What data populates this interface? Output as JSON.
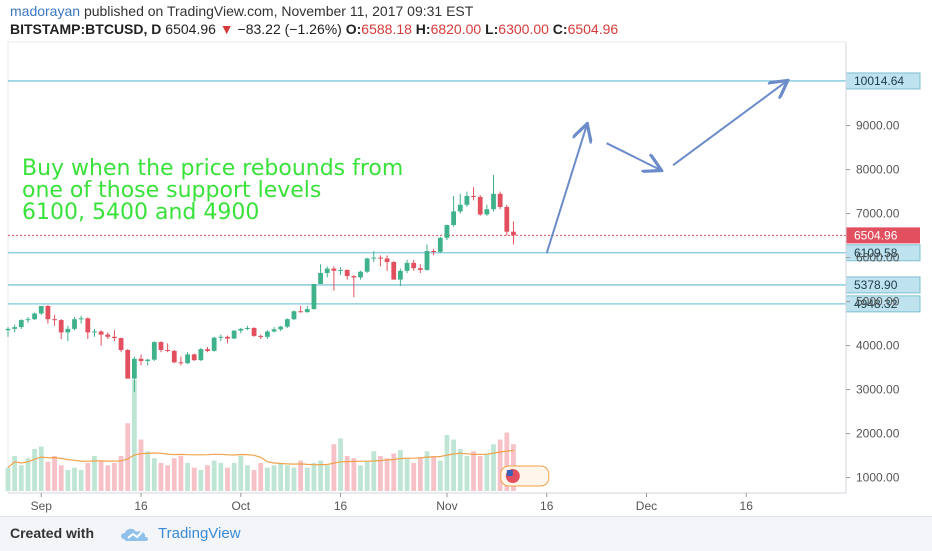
{
  "header": {
    "author": "madorayan",
    "published": "published on TradingView.com, November 11, 2017 09:31 EST",
    "symbol": "BITSTAMP:BTCUSD, D",
    "last": "6504.96",
    "change": "−83.22 (−1.26%)",
    "o_label": "O:",
    "o_val": "6588.18",
    "h_label": "H:",
    "h_val": "6820.00",
    "l_label": "L:",
    "l_val": "6300.00",
    "c_label": "C:",
    "c_val": "6504.96"
  },
  "footer": {
    "created": "Created with",
    "brand": "TradingView"
  },
  "colors": {
    "up": "#3fb28a",
    "down": "#e2505f",
    "level": "#7fc7d9",
    "arrow": "#6b8cc9",
    "annotation": "#39e23a",
    "volume_ma": "#f0a24a"
  },
  "chart_data": {
    "type": "candlestick",
    "title": "",
    "annotation": [
      "Buy when the price rebounds from",
      "one of those support levels",
      "6100, 5400 and 4900"
    ],
    "y_axis": {
      "ticks": [
        1000,
        2000,
        3000,
        4000,
        5000,
        6000,
        7000,
        8000,
        9000
      ],
      "tick_labels": [
        "1000.00",
        "2000.00",
        "3000.00",
        "4000.00",
        "5000.00",
        "6000.00",
        "7000.00",
        "8000.00",
        "9000.00"
      ],
      "range": [
        650,
        10900
      ]
    },
    "x_axis": {
      "tick_labels": [
        "Sep",
        "16",
        "Oct",
        "16",
        "Nov",
        "16",
        "Dec",
        "16"
      ],
      "tick_dates": [
        "2017-09-01",
        "2017-09-16",
        "2017-10-01",
        "2017-10-16",
        "2017-11-01",
        "2017-11-16",
        "2017-12-01",
        "2017-12-16"
      ],
      "range": [
        "2017-08-27",
        "2017-12-31"
      ]
    },
    "levels": [
      {
        "value": 10014.64,
        "label": "10014.64"
      },
      {
        "value": 6109.58,
        "label": "6109.58"
      },
      {
        "value": 5378.9,
        "label": "5378.90"
      },
      {
        "value": 4948.32,
        "label": "4948.32"
      }
    ],
    "last_price": {
      "value": 6504.96,
      "label": "6504.96"
    },
    "projection": [
      {
        "date": "2017-11-16",
        "value": 6100
      },
      {
        "date": "2017-11-22",
        "value": 9000
      },
      {
        "date": "2017-11-25",
        "value": 8600
      },
      {
        "date": "2017-12-03",
        "value": 8000
      },
      {
        "date": "2017-12-05",
        "value": 8100
      },
      {
        "date": "2017-12-22",
        "value": 10000
      }
    ],
    "candles": [
      {
        "d": "2017-08-27",
        "o": 4350,
        "h": 4420,
        "l": 4200,
        "c": 4380
      },
      {
        "d": "2017-08-28",
        "o": 4380,
        "h": 4480,
        "l": 4300,
        "c": 4420
      },
      {
        "d": "2017-08-29",
        "o": 4420,
        "h": 4600,
        "l": 4380,
        "c": 4580
      },
      {
        "d": "2017-08-30",
        "o": 4580,
        "h": 4650,
        "l": 4520,
        "c": 4600
      },
      {
        "d": "2017-08-31",
        "o": 4600,
        "h": 4750,
        "l": 4580,
        "c": 4730
      },
      {
        "d": "2017-09-01",
        "o": 4730,
        "h": 4900,
        "l": 4700,
        "c": 4900
      },
      {
        "d": "2017-09-02",
        "o": 4900,
        "h": 4920,
        "l": 4500,
        "c": 4600
      },
      {
        "d": "2017-09-03",
        "o": 4600,
        "h": 4700,
        "l": 4450,
        "c": 4580
      },
      {
        "d": "2017-09-04",
        "o": 4580,
        "h": 4600,
        "l": 4150,
        "c": 4300
      },
      {
        "d": "2017-09-05",
        "o": 4300,
        "h": 4450,
        "l": 4100,
        "c": 4380
      },
      {
        "d": "2017-09-06",
        "o": 4380,
        "h": 4650,
        "l": 4350,
        "c": 4600
      },
      {
        "d": "2017-09-07",
        "o": 4600,
        "h": 4680,
        "l": 4500,
        "c": 4620
      },
      {
        "d": "2017-09-08",
        "o": 4620,
        "h": 4640,
        "l": 4150,
        "c": 4300
      },
      {
        "d": "2017-09-09",
        "o": 4300,
        "h": 4380,
        "l": 4200,
        "c": 4320
      },
      {
        "d": "2017-09-10",
        "o": 4320,
        "h": 4350,
        "l": 4000,
        "c": 4250
      },
      {
        "d": "2017-09-11",
        "o": 4250,
        "h": 4300,
        "l": 4150,
        "c": 4200
      },
      {
        "d": "2017-09-12",
        "o": 4200,
        "h": 4350,
        "l": 4100,
        "c": 4170
      },
      {
        "d": "2017-09-13",
        "o": 4170,
        "h": 4180,
        "l": 3850,
        "c": 3900
      },
      {
        "d": "2017-09-14",
        "o": 3900,
        "h": 3920,
        "l": 3250,
        "c": 3250
      },
      {
        "d": "2017-09-15",
        "o": 3250,
        "h": 3750,
        "l": 2950,
        "c": 3700
      },
      {
        "d": "2017-09-16",
        "o": 3700,
        "h": 3800,
        "l": 3550,
        "c": 3650
      },
      {
        "d": "2017-09-17",
        "o": 3650,
        "h": 3700,
        "l": 3550,
        "c": 3680
      },
      {
        "d": "2017-09-18",
        "o": 3680,
        "h": 4100,
        "l": 3650,
        "c": 4080
      },
      {
        "d": "2017-09-19",
        "o": 4080,
        "h": 4100,
        "l": 3850,
        "c": 3900
      },
      {
        "d": "2017-09-20",
        "o": 3900,
        "h": 4050,
        "l": 3850,
        "c": 3880
      },
      {
        "d": "2017-09-21",
        "o": 3880,
        "h": 3900,
        "l": 3600,
        "c": 3620
      },
      {
        "d": "2017-09-22",
        "o": 3620,
        "h": 3750,
        "l": 3550,
        "c": 3600
      },
      {
        "d": "2017-09-23",
        "o": 3600,
        "h": 3850,
        "l": 3580,
        "c": 3800
      },
      {
        "d": "2017-09-24",
        "o": 3800,
        "h": 3820,
        "l": 3650,
        "c": 3670
      },
      {
        "d": "2017-09-25",
        "o": 3670,
        "h": 3950,
        "l": 3650,
        "c": 3920
      },
      {
        "d": "2017-09-26",
        "o": 3920,
        "h": 3970,
        "l": 3850,
        "c": 3880
      },
      {
        "d": "2017-09-27",
        "o": 3880,
        "h": 4200,
        "l": 3860,
        "c": 4180
      },
      {
        "d": "2017-09-28",
        "o": 4180,
        "h": 4250,
        "l": 4100,
        "c": 4200
      },
      {
        "d": "2017-09-29",
        "o": 4200,
        "h": 4230,
        "l": 4050,
        "c": 4160
      },
      {
        "d": "2017-09-30",
        "o": 4160,
        "h": 4350,
        "l": 4150,
        "c": 4340
      },
      {
        "d": "2017-10-01",
        "o": 4340,
        "h": 4400,
        "l": 4280,
        "c": 4380
      },
      {
        "d": "2017-10-02",
        "o": 4380,
        "h": 4450,
        "l": 4350,
        "c": 4400
      },
      {
        "d": "2017-10-03",
        "o": 4400,
        "h": 4420,
        "l": 4200,
        "c": 4220
      },
      {
        "d": "2017-10-04",
        "o": 4220,
        "h": 4250,
        "l": 4150,
        "c": 4200
      },
      {
        "d": "2017-10-05",
        "o": 4200,
        "h": 4350,
        "l": 4150,
        "c": 4320
      },
      {
        "d": "2017-10-06",
        "o": 4320,
        "h": 4420,
        "l": 4300,
        "c": 4370
      },
      {
        "d": "2017-10-07",
        "o": 4370,
        "h": 4450,
        "l": 4330,
        "c": 4430
      },
      {
        "d": "2017-10-08",
        "o": 4430,
        "h": 4620,
        "l": 4400,
        "c": 4600
      },
      {
        "d": "2017-10-09",
        "o": 4600,
        "h": 4800,
        "l": 4580,
        "c": 4780
      },
      {
        "d": "2017-10-10",
        "o": 4780,
        "h": 4900,
        "l": 4750,
        "c": 4760
      },
      {
        "d": "2017-10-11",
        "o": 4760,
        "h": 4900,
        "l": 4750,
        "c": 4830
      },
      {
        "d": "2017-10-12",
        "o": 4830,
        "h": 5400,
        "l": 4820,
        "c": 5400
      },
      {
        "d": "2017-10-13",
        "o": 5400,
        "h": 5850,
        "l": 5400,
        "c": 5650
      },
      {
        "d": "2017-10-14",
        "o": 5650,
        "h": 5800,
        "l": 5550,
        "c": 5750
      },
      {
        "d": "2017-10-15",
        "o": 5750,
        "h": 5800,
        "l": 5250,
        "c": 5700
      },
      {
        "d": "2017-10-16",
        "o": 5700,
        "h": 5780,
        "l": 5600,
        "c": 5720
      },
      {
        "d": "2017-10-17",
        "o": 5720,
        "h": 5730,
        "l": 5500,
        "c": 5580
      },
      {
        "d": "2017-10-18",
        "o": 5580,
        "h": 5600,
        "l": 5100,
        "c": 5550
      },
      {
        "d": "2017-10-19",
        "o": 5550,
        "h": 5700,
        "l": 5500,
        "c": 5680
      },
      {
        "d": "2017-10-20",
        "o": 5680,
        "h": 6000,
        "l": 5650,
        "c": 5980
      },
      {
        "d": "2017-10-21",
        "o": 5980,
        "h": 6150,
        "l": 5900,
        "c": 6000
      },
      {
        "d": "2017-10-22",
        "o": 6000,
        "h": 6050,
        "l": 5800,
        "c": 5980
      },
      {
        "d": "2017-10-23",
        "o": 5980,
        "h": 6050,
        "l": 5700,
        "c": 5900
      },
      {
        "d": "2017-10-24",
        "o": 5900,
        "h": 5920,
        "l": 5500,
        "c": 5500
      },
      {
        "d": "2017-10-25",
        "o": 5500,
        "h": 5750,
        "l": 5350,
        "c": 5700
      },
      {
        "d": "2017-10-26",
        "o": 5700,
        "h": 5950,
        "l": 5650,
        "c": 5880
      },
      {
        "d": "2017-10-27",
        "o": 5880,
        "h": 5950,
        "l": 5700,
        "c": 5760
      },
      {
        "d": "2017-10-28",
        "o": 5760,
        "h": 5850,
        "l": 5650,
        "c": 5720
      },
      {
        "d": "2017-10-29",
        "o": 5720,
        "h": 6300,
        "l": 5700,
        "c": 6150
      },
      {
        "d": "2017-10-30",
        "o": 6150,
        "h": 6200,
        "l": 6050,
        "c": 6130
      },
      {
        "d": "2017-10-31",
        "o": 6130,
        "h": 6470,
        "l": 6100,
        "c": 6450
      },
      {
        "d": "2017-11-01",
        "o": 6450,
        "h": 6750,
        "l": 6400,
        "c": 6740
      },
      {
        "d": "2017-11-02",
        "o": 6740,
        "h": 7400,
        "l": 6700,
        "c": 7050
      },
      {
        "d": "2017-11-03",
        "o": 7050,
        "h": 7450,
        "l": 7000,
        "c": 7200
      },
      {
        "d": "2017-11-04",
        "o": 7200,
        "h": 7500,
        "l": 7150,
        "c": 7400
      },
      {
        "d": "2017-11-05",
        "o": 7400,
        "h": 7600,
        "l": 7300,
        "c": 7380
      },
      {
        "d": "2017-11-06",
        "o": 7380,
        "h": 7420,
        "l": 6950,
        "c": 6980
      },
      {
        "d": "2017-11-07",
        "o": 6980,
        "h": 7200,
        "l": 6950,
        "c": 7100
      },
      {
        "d": "2017-11-08",
        "o": 7100,
        "h": 7880,
        "l": 7050,
        "c": 7450
      },
      {
        "d": "2017-11-09",
        "o": 7450,
        "h": 7500,
        "l": 7100,
        "c": 7150
      },
      {
        "d": "2017-11-10",
        "o": 7150,
        "h": 7200,
        "l": 6500,
        "c": 6588
      },
      {
        "d": "2017-11-11",
        "o": 6588,
        "h": 6820,
        "l": 6300,
        "c": 6505
      }
    ],
    "volume": [
      20,
      30,
      22,
      28,
      36,
      38,
      25,
      30,
      22,
      18,
      20,
      18,
      24,
      30,
      26,
      22,
      24,
      30,
      58,
      95,
      44,
      34,
      28,
      24,
      22,
      28,
      30,
      24,
      20,
      18,
      22,
      26,
      24,
      20,
      24,
      30,
      22,
      18,
      24,
      20,
      22,
      24,
      22,
      20,
      26,
      20,
      24,
      26,
      22,
      40,
      45,
      30,
      28,
      22,
      25,
      34,
      30,
      28,
      32,
      35,
      28,
      24,
      28,
      34,
      30,
      26,
      48,
      44,
      36,
      30,
      34,
      30,
      32,
      40,
      44,
      50,
      40
    ]
  }
}
